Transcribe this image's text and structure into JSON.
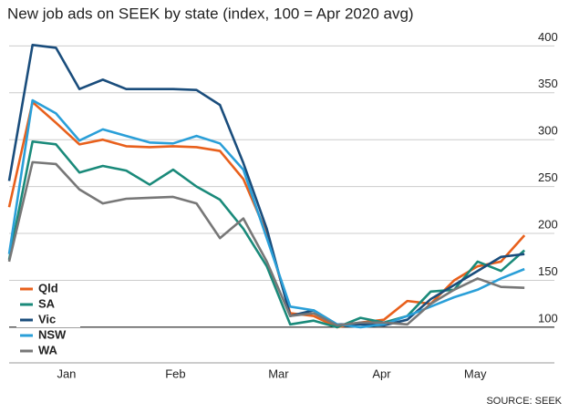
{
  "chart_data": {
    "type": "line",
    "title": "New job ads on SEEK by state (index, 100 = Apr 2020 avg)",
    "source": "SOURCE: SEEK",
    "x": [
      0,
      1,
      2,
      3,
      4,
      5,
      6,
      7,
      8,
      9,
      10,
      11,
      12,
      13,
      14,
      15,
      16,
      17,
      18,
      19,
      20,
      21,
      22
    ],
    "xlim": [
      0,
      22.5
    ],
    "xticks": [
      {
        "value": 2.45,
        "label": "Jan"
      },
      {
        "value": 7.1,
        "label": "Feb"
      },
      {
        "value": 11.5,
        "label": "Mar"
      },
      {
        "value": 15.9,
        "label": "Apr"
      },
      {
        "value": 19.9,
        "label": "May"
      }
    ],
    "ylim": [
      62,
      412
    ],
    "yticks": [
      100,
      150,
      200,
      250,
      300,
      350,
      400
    ],
    "grid": true,
    "legend": "lower left",
    "series": [
      {
        "name": "Qld",
        "color": "#e8601c",
        "values": [
          228,
          340,
          318,
          295,
          300,
          293,
          292,
          293,
          292,
          288,
          258,
          200,
          115,
          112,
          100,
          105,
          108,
          128,
          125,
          150,
          165,
          170,
          198
        ]
      },
      {
        "name": "SA",
        "color": "#1a8a7a",
        "values": [
          172,
          298,
          295,
          265,
          272,
          267,
          252,
          268,
          250,
          236,
          205,
          165,
          103,
          107,
          100,
          110,
          105,
          112,
          138,
          140,
          170,
          160,
          182
        ]
      },
      {
        "name": "Vic",
        "color": "#1a4d7c",
        "values": [
          256,
          401,
          398,
          354,
          364,
          354,
          354,
          354,
          353,
          337,
          275,
          205,
          112,
          118,
          103,
          103,
          102,
          108,
          130,
          145,
          160,
          175,
          178
        ]
      },
      {
        "name": "NSW",
        "color": "#2a9fd8",
        "values": [
          178,
          342,
          328,
          299,
          311,
          304,
          297,
          296,
          304,
          296,
          268,
          195,
          122,
          118,
          103,
          100,
          103,
          112,
          122,
          132,
          140,
          152,
          162
        ]
      },
      {
        "name": "WA",
        "color": "#777777",
        "values": [
          170,
          276,
          274,
          247,
          232,
          237,
          238,
          239,
          232,
          195,
          216,
          170,
          112,
          115,
          102,
          105,
          105,
          103,
          125,
          140,
          152,
          143,
          142
        ]
      }
    ]
  }
}
